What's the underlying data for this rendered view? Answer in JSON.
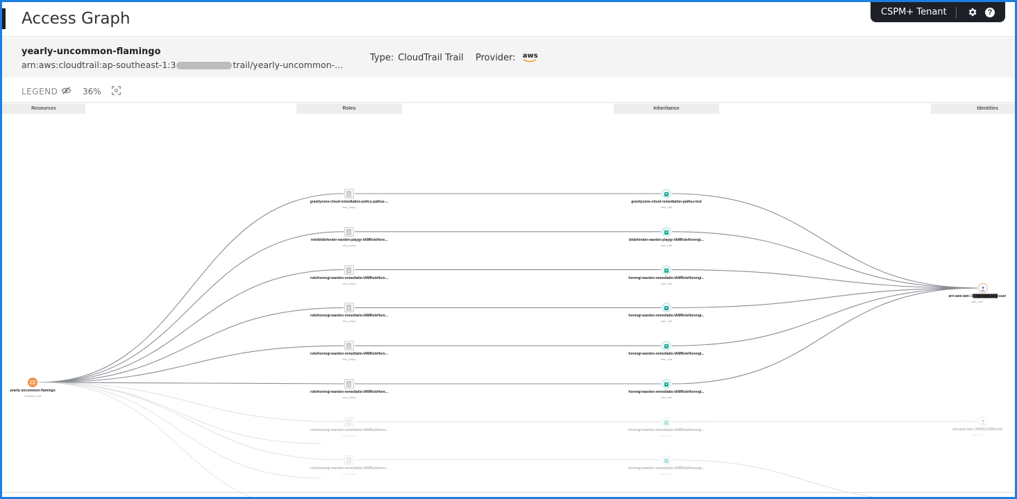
{
  "header": {
    "title": "Access Graph",
    "tenant": "CSPM+ Tenant",
    "settings_icon": "gear-icon",
    "help_icon": "help-icon"
  },
  "resource": {
    "name": "yearly-uncommon-flamingo",
    "arn_prefix": "arn:aws:cloudtrail:ap-southeast-1:3",
    "arn_suffix": "trail/yearly-uncommon-...",
    "type_label": "Type:",
    "type_value": "CloudTrail Trail",
    "provider_label": "Provider:",
    "provider_value": "aws"
  },
  "toolbar": {
    "legend_label": "LEGEND",
    "legend_icon": "eye-off-icon",
    "zoom": "36%",
    "fit_icon": "fit-screen-icon"
  },
  "columns": [
    "Resources",
    "Roles",
    "Inheritance",
    "Identities"
  ],
  "graph": {
    "resource_node": {
      "label": "yearly-uncommon-flamingo",
      "sub": "cloudtrail_trail"
    },
    "identity_nodes": [
      {
        "label": "arn:aws:iam::3██████████:user",
        "sub": "aws_user"
      },
      {
        "label": "arn:aws:iam::3090112438:root",
        "sub": "aws_root"
      }
    ],
    "rows": [
      {
        "role": "gravityzone-cloud-remediation-policy-pathus-...",
        "role_sub": "iam_policy",
        "inherit": "gravityzone-cloud-remediation-pathus-test",
        "inherit_sub": "aws_role"
      },
      {
        "role": "role/bitdefender-warden-playgr-IAMRoleHore...",
        "role_sub": "iam_policy",
        "inherit": "bitdefender-warden-playgr-IAMRoleHorengi...",
        "inherit_sub": "aws_role"
      },
      {
        "role": "role/horengi-warden-remediatio-IAMRoleHore...",
        "role_sub": "iam_policy",
        "inherit": "horengi-warden-remediatio-IAMRoleHorengi...",
        "inherit_sub": "aws_role"
      },
      {
        "role": "role/horengi-warden-remediatio-IAMRoleHore...",
        "role_sub": "iam_policy",
        "inherit": "horengi-warden-remediatio-IAMRoleHorengi...",
        "inherit_sub": "aws_role"
      },
      {
        "role": "role/horengi-warden-remediatio-IAMRoleHore...",
        "role_sub": "iam_policy",
        "inherit": "horengi-warden-remediatio-IAMRoleHorengi...",
        "inherit_sub": "aws_role"
      },
      {
        "role": "role/horengi-warden-remediatio-IAMRoleHore...",
        "role_sub": "iam_policy",
        "inherit": "horengi-warden-remediatio-IAMRoleHorengi...",
        "inherit_sub": "aws_role"
      },
      {
        "role": "role/horengi-warden-remediatio-IAMRoleHore...",
        "role_sub": "iam_policy",
        "inherit": "horengi-warden-remediatio-IAMRoleHorengi...",
        "inherit_sub": "aws_role"
      },
      {
        "role": "role/horengi-warden-remediatio-IAMRoleHore...",
        "role_sub": "iam_policy",
        "inherit": "horengi-warden-remediatio-IAMRoleHorengi...",
        "inherit_sub": "aws_role"
      }
    ],
    "colors": {
      "resource_node": "#f0944d",
      "inherit_node": "#1aa89a",
      "identity_node": "#7a7fd6",
      "edge": "#8a8d94",
      "faded_edge": "#d8d9dc"
    }
  }
}
